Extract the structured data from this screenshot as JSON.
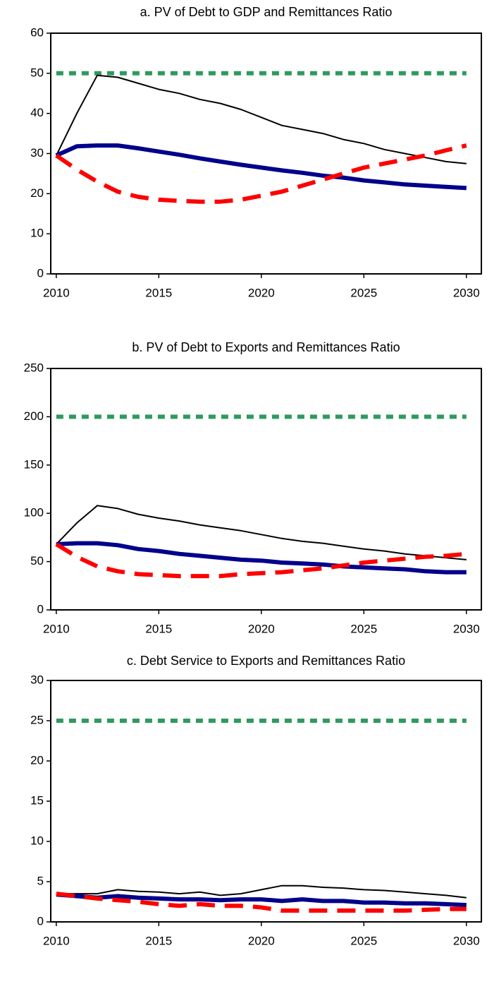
{
  "chart_data": [
    {
      "type": "line",
      "title": "a. PV of Debt to GDP and Remittances Ratio",
      "x": [
        2010,
        2011,
        2012,
        2013,
        2014,
        2015,
        2016,
        2017,
        2018,
        2019,
        2020,
        2021,
        2022,
        2023,
        2024,
        2025,
        2026,
        2027,
        2028,
        2029,
        2030
      ],
      "xlim": [
        2009.73,
        2030.73
      ],
      "xticks": [
        2010,
        2015,
        2020,
        2025,
        2030
      ],
      "ylim": [
        0,
        60
      ],
      "yticks": [
        0,
        10,
        20,
        30,
        40,
        50,
        60
      ],
      "grid": false,
      "series": [
        {
          "color": "#2e9a5e",
          "dash": "dotted",
          "values": [
            50,
            50,
            50,
            50,
            50,
            50,
            50,
            50,
            50,
            50,
            50,
            50,
            50,
            50,
            50,
            50,
            50,
            50,
            50,
            50,
            50
          ]
        },
        {
          "color": "#000000",
          "dash": "solid-thin",
          "values": [
            29.5,
            40,
            49.5,
            49,
            47.5,
            46,
            45,
            43.5,
            42.5,
            41,
            39,
            37,
            36,
            35,
            33.5,
            32.5,
            31,
            30,
            29,
            28,
            27.5
          ]
        },
        {
          "color": "#00008b",
          "dash": "solid",
          "values": [
            29.5,
            31.8,
            32,
            32,
            31.3,
            30.5,
            29.7,
            28.8,
            28,
            27.2,
            26.5,
            25.8,
            25.2,
            24.5,
            24,
            23.3,
            22.8,
            22.3,
            22,
            21.7,
            21.4
          ]
        },
        {
          "color": "#ff0000",
          "dash": "dashed",
          "values": [
            29.5,
            26,
            23,
            20.5,
            19.2,
            18.5,
            18.2,
            18,
            18,
            18.5,
            19.5,
            20.5,
            22,
            23.5,
            25,
            26.5,
            27.5,
            28.5,
            29.5,
            30.8,
            32
          ]
        }
      ]
    },
    {
      "type": "line",
      "title": "b. PV of Debt to Exports and Remittances Ratio",
      "x": [
        2010,
        2011,
        2012,
        2013,
        2014,
        2015,
        2016,
        2017,
        2018,
        2019,
        2020,
        2021,
        2022,
        2023,
        2024,
        2025,
        2026,
        2027,
        2028,
        2029,
        2030
      ],
      "xlim": [
        2009.73,
        2030.73
      ],
      "xticks": [
        2010,
        2015,
        2020,
        2025,
        2030
      ],
      "ylim": [
        0,
        250
      ],
      "yticks": [
        0,
        50,
        100,
        150,
        200,
        250
      ],
      "grid": false,
      "series": [
        {
          "color": "#2e9a5e",
          "dash": "dotted",
          "values": [
            200,
            200,
            200,
            200,
            200,
            200,
            200,
            200,
            200,
            200,
            200,
            200,
            200,
            200,
            200,
            200,
            200,
            200,
            200,
            200,
            200
          ]
        },
        {
          "color": "#000000",
          "dash": "solid-thin",
          "values": [
            68,
            90,
            108,
            105,
            99,
            95,
            92,
            88,
            85,
            82,
            78,
            74,
            71,
            69,
            66,
            63,
            61,
            58,
            56,
            54,
            52
          ]
        },
        {
          "color": "#00008b",
          "dash": "solid",
          "values": [
            68,
            69,
            69,
            67,
            63,
            61,
            58,
            56,
            54,
            52,
            51,
            49,
            48,
            47,
            45,
            44,
            43,
            42,
            40,
            39,
            39
          ]
        },
        {
          "color": "#ff0000",
          "dash": "dashed",
          "values": [
            68,
            55,
            45,
            40,
            37,
            36,
            35,
            35,
            35,
            37,
            38,
            39,
            41,
            43,
            46,
            49,
            51,
            53,
            55,
            56,
            58
          ]
        }
      ]
    },
    {
      "type": "line",
      "title": "c. Debt Service to Exports and Remittances Ratio",
      "x": [
        2010,
        2011,
        2012,
        2013,
        2014,
        2015,
        2016,
        2017,
        2018,
        2019,
        2020,
        2021,
        2022,
        2023,
        2024,
        2025,
        2026,
        2027,
        2028,
        2029,
        2030
      ],
      "xlim": [
        2009.73,
        2030.73
      ],
      "xticks": [
        2010,
        2015,
        2020,
        2025,
        2030
      ],
      "ylim": [
        0,
        30
      ],
      "yticks": [
        0,
        5,
        10,
        15,
        20,
        25,
        30
      ],
      "grid": false,
      "series": [
        {
          "color": "#2e9a5e",
          "dash": "dotted",
          "values": [
            25,
            25,
            25,
            25,
            25,
            25,
            25,
            25,
            25,
            25,
            25,
            25,
            25,
            25,
            25,
            25,
            25,
            25,
            25,
            25,
            25
          ]
        },
        {
          "color": "#000000",
          "dash": "solid-thin",
          "values": [
            3.5,
            3.5,
            3.5,
            4,
            3.8,
            3.7,
            3.5,
            3.7,
            3.3,
            3.5,
            4,
            4.5,
            4.5,
            4.3,
            4.2,
            4,
            3.9,
            3.7,
            3.5,
            3.3,
            3
          ]
        },
        {
          "color": "#00008b",
          "dash": "solid",
          "values": [
            3.4,
            3.2,
            3,
            3.2,
            3,
            2.9,
            2.8,
            2.8,
            2.7,
            2.8,
            2.8,
            2.6,
            2.8,
            2.6,
            2.6,
            2.4,
            2.4,
            2.3,
            2.3,
            2.2,
            2.1
          ]
        },
        {
          "color": "#ff0000",
          "dash": "dashed",
          "values": [
            3.5,
            3.2,
            2.9,
            2.7,
            2.5,
            2.2,
            2,
            2.2,
            2,
            2,
            1.8,
            1.4,
            1.4,
            1.4,
            1.4,
            1.4,
            1.4,
            1.4,
            1.5,
            1.6,
            1.6
          ]
        }
      ]
    }
  ]
}
